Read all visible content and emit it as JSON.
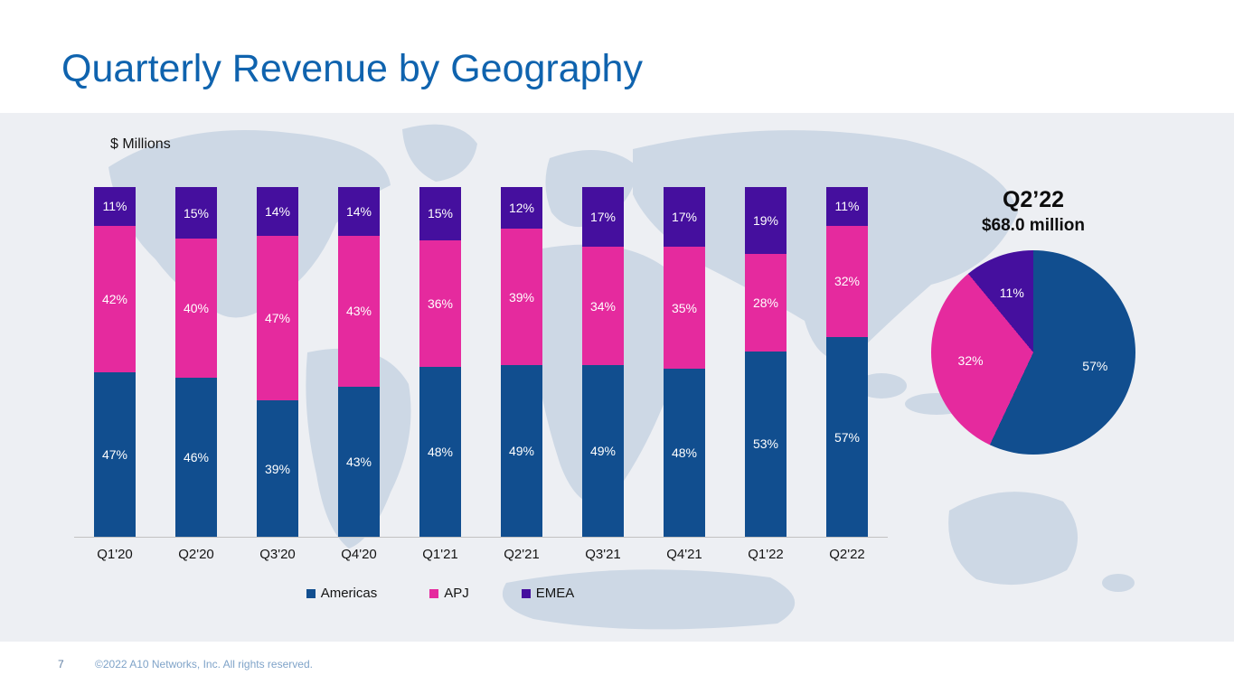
{
  "slide": {
    "title": "Quarterly Revenue by Geography",
    "page_number": "7",
    "copyright": "©2022 A10 Networks, Inc. All rights reserved."
  },
  "colors": {
    "title_blue": "#0f63ae",
    "americas": "#114e8f",
    "apj": "#e52a9e",
    "emea": "#450f9e",
    "map_fill": "#cdd8e5",
    "band_background": "#edeff3"
  },
  "chart_data": [
    {
      "type": "bar",
      "stacked": true,
      "units_label": "$ Millions",
      "value_suffix": "%",
      "legend_position": "bottom",
      "categories": [
        "Q1'20",
        "Q2'20",
        "Q3'20",
        "Q4'20",
        "Q1'21",
        "Q2'21",
        "Q3'21",
        "Q4'21",
        "Q1'22",
        "Q2'22"
      ],
      "series": [
        {
          "name": "Americas",
          "color_key": "americas",
          "values": [
            47,
            46,
            39,
            43,
            48,
            49,
            49,
            48,
            53,
            57
          ]
        },
        {
          "name": "APJ",
          "color_key": "apj",
          "values": [
            42,
            40,
            47,
            43,
            36,
            39,
            34,
            35,
            28,
            32
          ]
        },
        {
          "name": "EMEA",
          "color_key": "emea",
          "values": [
            11,
            15,
            14,
            14,
            15,
            12,
            17,
            17,
            19,
            11
          ]
        }
      ]
    },
    {
      "type": "pie",
      "title": "Q2’22",
      "subtitle": "$68.0 million",
      "value_suffix": "%",
      "slices": [
        {
          "label": "Americas",
          "value": 57,
          "color_key": "americas"
        },
        {
          "label": "APJ",
          "value": 32,
          "color_key": "apj"
        },
        {
          "label": "EMEA",
          "value": 11,
          "color_key": "emea"
        }
      ]
    }
  ]
}
